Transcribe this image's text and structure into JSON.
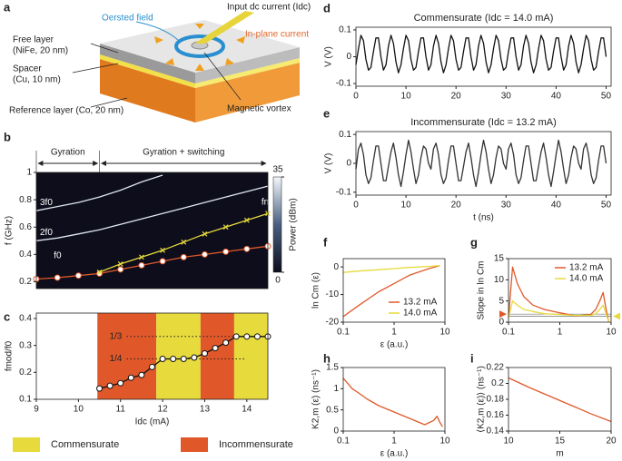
{
  "panel_labels": [
    "a",
    "b",
    "c",
    "d",
    "e",
    "f",
    "g",
    "h",
    "i"
  ],
  "diagram": {
    "oersted": "Oersted field",
    "input": "Input dc current (Idc)",
    "inplane": "In-plane current",
    "free_layer": [
      "Free layer",
      "(NiFe, 20 nm)"
    ],
    "spacer": [
      "Spacer",
      "(Cu, 10 nm)"
    ],
    "reference": "Reference layer (Co, 20 nm)",
    "vortex": "Magnetic vortex"
  },
  "chart_data": [
    {
      "type": "line",
      "ylabel": "f (GHz)",
      "xlim": [
        9,
        14.5
      ],
      "ylim": [
        0.15,
        1
      ],
      "yticks": [
        0.2,
        0.4,
        0.6,
        0.8,
        1
      ],
      "background": "#0d0d1c",
      "regions": [
        {
          "label": "Gyration",
          "range": [
            9,
            10.5
          ]
        },
        {
          "label": "Gyration + switching",
          "range": [
            10.5,
            14.5
          ]
        }
      ],
      "colorbar": {
        "label": "Power (dBm)",
        "lim": [
          0,
          35
        ],
        "ticks": [
          0,
          35
        ]
      },
      "series": [
        {
          "name": "3f0",
          "color": "#dde6f0",
          "x": [
            9,
            9.5,
            10,
            10.5,
            11,
            11.5,
            12
          ],
          "values": [
            0.72,
            0.75,
            0.78,
            0.82,
            0.87,
            0.93,
            0.98
          ]
        },
        {
          "name": "2f0",
          "color": "#dde6f0",
          "x": [
            9,
            9.5,
            10,
            10.5,
            11,
            11.5,
            12,
            12.5,
            13,
            13.5,
            14,
            14.5
          ],
          "values": [
            0.5,
            0.52,
            0.55,
            0.58,
            0.62,
            0.66,
            0.7,
            0.74,
            0.78,
            0.82,
            0.86,
            0.9
          ]
        },
        {
          "name": "f0",
          "color": "#e0582a",
          "marker": "circle",
          "x": [
            9,
            9.5,
            10,
            10.5,
            11,
            11.5,
            12,
            12.5,
            13,
            13.5,
            14,
            14.5
          ],
          "values": [
            0.22,
            0.23,
            0.245,
            0.26,
            0.29,
            0.32,
            0.35,
            0.38,
            0.4,
            0.42,
            0.44,
            0.46
          ]
        },
        {
          "name": "fmod",
          "color": "#e6da3c",
          "marker": "x",
          "x": [
            10.5,
            11,
            11.5,
            12,
            12.5,
            13,
            13.5,
            14,
            14.5
          ],
          "values": [
            0.27,
            0.33,
            0.38,
            0.43,
            0.49,
            0.55,
            0.6,
            0.65,
            0.7
          ]
        }
      ]
    },
    {
      "type": "line",
      "ylabel": "fmod/f0",
      "xlabel": "Idc (mA)",
      "xlim": [
        9,
        14.5
      ],
      "ylim": [
        0.1,
        0.42
      ],
      "xticks": [
        9,
        10,
        11,
        12,
        13,
        14
      ],
      "yticks": [
        0.1,
        0.2,
        0.3,
        0.4
      ],
      "bands": [
        {
          "range": [
            10.45,
            11.85
          ],
          "color": "#e0582a"
        },
        {
          "range": [
            11.85,
            12.9
          ],
          "color": "#e6da3c"
        },
        {
          "range": [
            12.9,
            13.7
          ],
          "color": "#e0582a"
        },
        {
          "range": [
            13.7,
            14.5
          ],
          "color": "#e6da3c"
        }
      ],
      "guides": [
        {
          "value": 0.3333,
          "label": "1/3"
        },
        {
          "value": 0.25,
          "label": "1/4"
        }
      ],
      "legend_items": [
        {
          "label": "Commensurate",
          "color": "#e6da3c"
        },
        {
          "label": "Incommensurate",
          "color": "#e0582a"
        }
      ],
      "series": [
        {
          "color": "#111111",
          "marker": "circle",
          "x": [
            10.5,
            10.75,
            11,
            11.25,
            11.5,
            11.75,
            12,
            12.25,
            12.5,
            12.75,
            13,
            13.25,
            13.5,
            13.75,
            14,
            14.25,
            14.5
          ],
          "values": [
            0.14,
            0.15,
            0.16,
            0.18,
            0.19,
            0.22,
            0.25,
            0.25,
            0.25,
            0.255,
            0.27,
            0.29,
            0.31,
            0.333,
            0.333,
            0.333,
            0.333
          ]
        }
      ]
    },
    {
      "type": "line",
      "title": "Commensurate (Idc = 14.0 mA)",
      "ylabel": "V (V)",
      "xlim": [
        0,
        51
      ],
      "ylim": [
        -0.11,
        0.11
      ],
      "xticks": [
        0,
        10,
        20,
        30,
        40,
        50
      ],
      "yticks": [
        -0.1,
        0,
        0.1
      ],
      "x": [
        0,
        0.5,
        1,
        1.5,
        2,
        2.5,
        3,
        3.5,
        4,
        4.5,
        5,
        5.5,
        6,
        6.5,
        7,
        7.5,
        8,
        8.5,
        9,
        9.5,
        10,
        10.5,
        11,
        11.5,
        12,
        12.5,
        13,
        13.5,
        14,
        14.5,
        15,
        15.5,
        16,
        16.5,
        17,
        17.5,
        18,
        18.5,
        19,
        19.5,
        20,
        20.5,
        21,
        21.5,
        22,
        22.5,
        23,
        23.5,
        24,
        24.5,
        25,
        25.5,
        26,
        26.5,
        27,
        27.5,
        28,
        28.5,
        29,
        29.5,
        30,
        30.5,
        31,
        31.5,
        32,
        32.5,
        33,
        33.5,
        34,
        34.5,
        35,
        35.5,
        36,
        36.5,
        37,
        37.5,
        38,
        38.5,
        39,
        39.5,
        40,
        40.5,
        41,
        41.5,
        42,
        42.5,
        43,
        43.5,
        44,
        44.5,
        45,
        45.5,
        46,
        46.5,
        47,
        47.5,
        48,
        48.5,
        49,
        49.5,
        50
      ],
      "series": [
        {
          "color": "#111111",
          "values": [
            -0.03,
            0.03,
            0.08,
            0.06,
            -0.01,
            -0.05,
            -0.04,
            0.02,
            0.07,
            0.07,
            0,
            -0.05,
            -0.03,
            0.04,
            0.08,
            0.05,
            -0.02,
            -0.06,
            -0.03,
            0.03,
            0.08,
            0.06,
            -0.01,
            -0.05,
            -0.04,
            0.02,
            0.07,
            0.07,
            0,
            -0.05,
            -0.03,
            0.04,
            0.08,
            0.05,
            -0.02,
            -0.06,
            -0.03,
            0.03,
            0.08,
            0.06,
            -0.01,
            -0.05,
            -0.04,
            0.02,
            0.07,
            0.07,
            0,
            -0.05,
            -0.03,
            0.04,
            0.08,
            0.05,
            -0.02,
            -0.06,
            -0.03,
            0.03,
            0.08,
            0.06,
            -0.01,
            -0.05,
            -0.04,
            0.02,
            0.07,
            0.07,
            0,
            -0.05,
            -0.03,
            0.04,
            0.08,
            0.05,
            -0.02,
            -0.06,
            -0.03,
            0.03,
            0.08,
            0.06,
            -0.01,
            -0.05,
            -0.04,
            0.02,
            0.07,
            0.07,
            0,
            -0.05,
            -0.03,
            0.04,
            0.08,
            0.05,
            -0.02,
            -0.06,
            -0.03,
            0.03,
            0.08,
            0.06,
            -0.01,
            -0.05,
            -0.04,
            0.02,
            0.07,
            0.07,
            0
          ]
        }
      ]
    },
    {
      "type": "line",
      "title": "Incommensurate (Idc = 13.2 mA)",
      "ylabel": "V (V)",
      "xlabel": "t (ns)",
      "xlim": [
        0,
        51
      ],
      "ylim": [
        -0.11,
        0.11
      ],
      "xticks": [
        0,
        10,
        20,
        30,
        40,
        50
      ],
      "yticks": [
        -0.1,
        0,
        0.1
      ],
      "x": [
        0,
        0.5,
        1,
        1.5,
        2,
        2.5,
        3,
        3.5,
        4,
        4.5,
        5,
        5.5,
        6,
        6.5,
        7,
        7.5,
        8,
        8.5,
        9,
        9.5,
        10,
        10.5,
        11,
        11.5,
        12,
        12.5,
        13,
        13.5,
        14,
        14.5,
        15,
        15.5,
        16,
        16.5,
        17,
        17.5,
        18,
        18.5,
        19,
        19.5,
        20,
        20.5,
        21,
        21.5,
        22,
        22.5,
        23,
        23.5,
        24,
        24.5,
        25,
        25.5,
        26,
        26.5,
        27,
        27.5,
        28,
        28.5,
        29,
        29.5,
        30,
        30.5,
        31,
        31.5,
        32,
        32.5,
        33,
        33.5,
        34,
        34.5,
        35,
        35.5,
        36,
        36.5,
        37,
        37.5,
        38,
        38.5,
        39,
        39.5,
        40,
        40.5,
        41,
        41.5,
        42,
        42.5,
        43,
        43.5,
        44,
        44.5,
        45,
        45.5,
        46,
        46.5,
        47,
        47.5,
        48,
        48.5,
        49,
        49.5,
        50
      ],
      "series": [
        {
          "color": "#333333",
          "values": [
            -0.02,
            0.05,
            0.07,
            0.03,
            -0.04,
            -0.07,
            -0.05,
            0.01,
            0.06,
            0.06,
            0,
            -0.06,
            -0.06,
            -0.01,
            0.04,
            0.07,
            0.02,
            -0.04,
            -0.08,
            -0.03,
            0.03,
            0.08,
            0.04,
            -0.02,
            -0.07,
            -0.04,
            0.02,
            0.06,
            0.05,
            0,
            -0.02,
            0.05,
            0.07,
            0.03,
            -0.04,
            -0.07,
            -0.05,
            0.01,
            0.06,
            0.06,
            0,
            -0.06,
            -0.06,
            -0.01,
            0.04,
            0.07,
            0.02,
            -0.04,
            -0.08,
            -0.03,
            0.03,
            0.08,
            0.04,
            -0.02,
            -0.07,
            -0.04,
            0.02,
            0.06,
            0.05,
            0,
            -0.02,
            0.05,
            0.07,
            0.03,
            -0.04,
            -0.07,
            -0.05,
            0.01,
            0.06,
            0.06,
            0,
            -0.06,
            -0.06,
            -0.01,
            0.04,
            0.07,
            0.02,
            -0.04,
            -0.08,
            -0.03,
            0.03,
            0.08,
            0.04,
            -0.02,
            -0.07,
            -0.04,
            0.02,
            0.06,
            0.05,
            0,
            -0.02,
            0.05,
            0.07,
            0.03,
            -0.04,
            -0.07,
            -0.05,
            0.01,
            0.06,
            0.06,
            0
          ]
        }
      ]
    },
    {
      "type": "line",
      "ylabel": "ln Cm (ε)",
      "xlabel": "ε (a.u.)",
      "xscale": "log",
      "xlim": [
        0.1,
        10
      ],
      "ylim": [
        -20,
        3
      ],
      "xticks": [
        0.1,
        1,
        10
      ],
      "yticks": [
        -20,
        -10,
        0
      ],
      "legend": "lower right",
      "series": [
        {
          "name": "13.2 mA",
          "color": "#e0582a",
          "x": [
            0.1,
            0.2,
            0.5,
            1,
            2,
            5,
            8
          ],
          "values": [
            -18,
            -14,
            -9,
            -6,
            -3,
            -0.5,
            0.5
          ]
        },
        {
          "name": "14.0 mA",
          "color": "#e6da3c",
          "x": [
            0.1,
            0.2,
            0.5,
            1,
            2,
            5,
            8
          ],
          "values": [
            -2,
            -1.5,
            -1,
            -0.6,
            -0.2,
            0.2,
            0.5
          ]
        }
      ]
    },
    {
      "type": "line",
      "ylabel": "Slope in ln Cm",
      "xscale": "log",
      "xlim": [
        0.1,
        10
      ],
      "ylim": [
        0,
        15
      ],
      "xticks": [
        0.1,
        1,
        10
      ],
      "yticks": [
        0,
        5,
        10,
        15
      ],
      "legend": "upper right",
      "reference_lines": [
        {
          "value": 1.9,
          "color": "#e0582a",
          "side": "left"
        },
        {
          "value": 1.4,
          "color": "#e6da3c",
          "side": "right"
        }
      ],
      "series": [
        {
          "name": "13.2 mA",
          "color": "#e0582a",
          "x": [
            0.1,
            0.12,
            0.15,
            0.2,
            0.3,
            0.5,
            1,
            2,
            4,
            5,
            6,
            7,
            8,
            9
          ],
          "values": [
            1,
            13,
            9,
            6,
            4,
            3,
            2.2,
            1.5,
            1.8,
            3,
            5,
            7,
            3,
            0
          ]
        },
        {
          "name": "14.0 mA",
          "color": "#e6da3c",
          "x": [
            0.1,
            0.12,
            0.15,
            0.2,
            0.3,
            0.5,
            1,
            2,
            4,
            5,
            6,
            7,
            8,
            9
          ],
          "values": [
            1,
            5,
            4,
            3,
            2.5,
            2,
            1.8,
            1.6,
            1.6,
            2,
            3,
            4,
            2,
            0
          ]
        }
      ]
    },
    {
      "type": "line",
      "ylabel": "K2,m (ε) (ns⁻¹)",
      "xlabel": "ε (a.u.)",
      "xscale": "log",
      "xlim": [
        0.1,
        10
      ],
      "ylim": [
        0,
        1.5
      ],
      "xticks": [
        0.1,
        1,
        10
      ],
      "yticks": [
        0,
        0.5,
        1,
        1.5
      ],
      "series": [
        {
          "color": "#e0582a",
          "x": [
            0.1,
            0.15,
            0.2,
            0.3,
            0.5,
            1,
            2,
            4,
            6,
            7,
            8,
            9
          ],
          "values": [
            1.25,
            1,
            0.9,
            0.75,
            0.6,
            0.45,
            0.3,
            0.15,
            0.25,
            0.35,
            0.2,
            0.1
          ]
        }
      ]
    },
    {
      "type": "line",
      "ylabel": "⟨K2,m (ε)⟩ (ns⁻¹)",
      "xlabel": "m",
      "xlim": [
        10,
        20
      ],
      "ylim": [
        0.14,
        0.22
      ],
      "xticks": [
        10,
        15,
        20
      ],
      "yticks": [
        0.14,
        0.16,
        0.18,
        0.2,
        0.22
      ],
      "series": [
        {
          "color": "#e0582a",
          "x": [
            10,
            12,
            14,
            16,
            18,
            20
          ],
          "values": [
            0.207,
            0.195,
            0.184,
            0.173,
            0.162,
            0.152
          ]
        }
      ]
    }
  ]
}
